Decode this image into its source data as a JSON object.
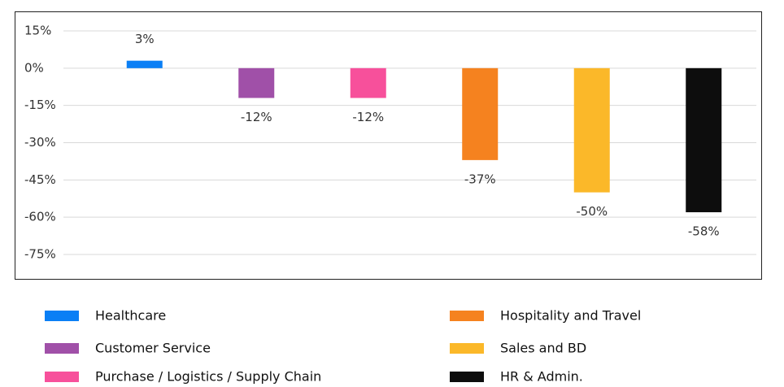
{
  "chart_data": {
    "type": "bar",
    "categories": [
      "Healthcare",
      "Customer Service",
      "Purchase / Logistics / Supply Chain",
      "Hospitality and Travel",
      "Sales and BD",
      "HR & Admin."
    ],
    "values": [
      3,
      -12,
      -12,
      -37,
      -50,
      -58
    ],
    "value_labels": [
      "3%",
      "-12%",
      "-12%",
      "-37%",
      "-50%",
      "-58%"
    ],
    "colors": [
      "#0a7ff5",
      "#a050a8",
      "#f7509b",
      "#f5821f",
      "#fbb829",
      "#0d0d0d"
    ],
    "ylim": [
      -75,
      15
    ],
    "yticks": [
      {
        "value": 15,
        "label": "15%"
      },
      {
        "value": 0,
        "label": "0%"
      },
      {
        "value": -15,
        "label": "-15%"
      },
      {
        "value": -30,
        "label": "-30%"
      },
      {
        "value": -45,
        "label": "-45%"
      },
      {
        "value": -60,
        "label": "-60%"
      },
      {
        "value": -75,
        "label": "-75%"
      }
    ],
    "grid": true,
    "legend": "bottom"
  }
}
